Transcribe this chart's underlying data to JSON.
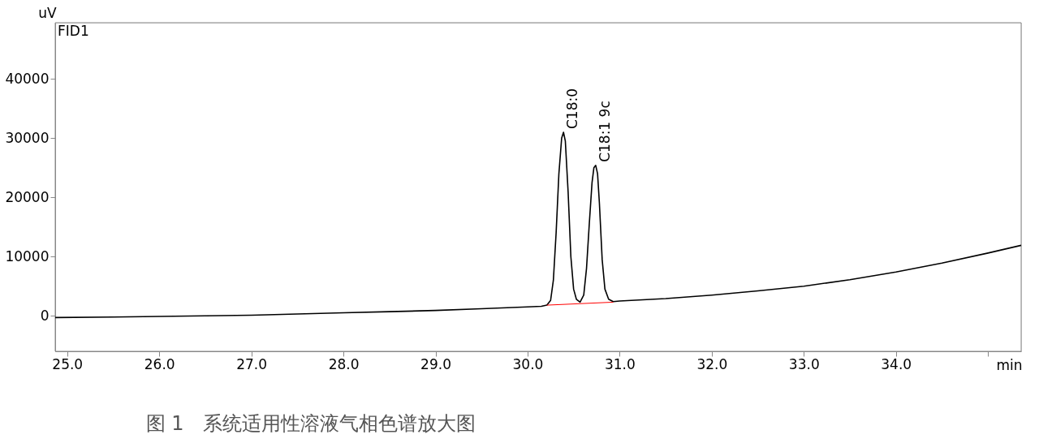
{
  "chart_data": {
    "type": "line",
    "xlabel": "min",
    "ylabel": "uV",
    "xlim": [
      24.87,
      35.36
    ],
    "ylim": [
      -6000,
      49500
    ],
    "xticks": [
      {
        "value": 25,
        "label": "25.0"
      },
      {
        "value": 26,
        "label": "26.0"
      },
      {
        "value": 27,
        "label": "27.0"
      },
      {
        "value": 28,
        "label": "28.0"
      },
      {
        "value": 29,
        "label": "29.0"
      },
      {
        "value": 30,
        "label": "30.0"
      },
      {
        "value": 31,
        "label": "31.0"
      },
      {
        "value": 32,
        "label": "32.0"
      },
      {
        "value": 33,
        "label": "33.0"
      },
      {
        "value": 34,
        "label": "34.0"
      },
      {
        "value": 35,
        "label": null
      }
    ],
    "yticks": [
      0,
      10000,
      20000,
      30000,
      40000
    ],
    "grid": false,
    "marker": "none",
    "line_style": "solid",
    "series": [
      {
        "color": "#000000",
        "x": [
          24.87,
          25.5,
          26.0,
          26.5,
          27.0,
          27.5,
          28.0,
          28.5,
          29.0,
          29.5,
          30.0,
          30.15,
          30.21,
          30.25,
          30.28,
          30.31,
          30.34,
          30.37,
          30.39,
          30.41,
          30.44,
          30.47,
          30.5,
          30.53,
          30.57,
          30.61,
          30.64,
          30.67,
          30.7,
          30.72,
          30.74,
          30.76,
          30.78,
          30.81,
          30.84,
          30.88,
          30.93,
          31.0,
          31.5,
          32.0,
          32.5,
          33.0,
          33.5,
          34.0,
          34.5,
          35.0,
          35.36
        ],
        "values": [
          -300,
          -200,
          -100,
          0,
          100,
          300,
          500,
          700,
          900,
          1200,
          1500,
          1600,
          1800,
          2600,
          6000,
          14000,
          24000,
          30000,
          31000,
          29500,
          21000,
          10000,
          4500,
          2800,
          2300,
          3500,
          8000,
          15500,
          22500,
          25000,
          25400,
          24000,
          19000,
          9500,
          4500,
          2800,
          2400,
          2500,
          2900,
          3500,
          4200,
          5000,
          6100,
          7400,
          8900,
          10600,
          11900
        ]
      },
      {
        "color": "#ff0000",
        "x": [
          30.21,
          30.93
        ],
        "values": [
          1800,
          2300
        ]
      }
    ],
    "annotations": [
      {
        "text": "C18:0",
        "x": 30.39,
        "y": 31000
      },
      {
        "text": "C18:1 9c",
        "x": 30.74,
        "y": 25400
      },
      "FID1",
      "图 1　系统适用性溶液气相色谱放大图"
    ]
  }
}
